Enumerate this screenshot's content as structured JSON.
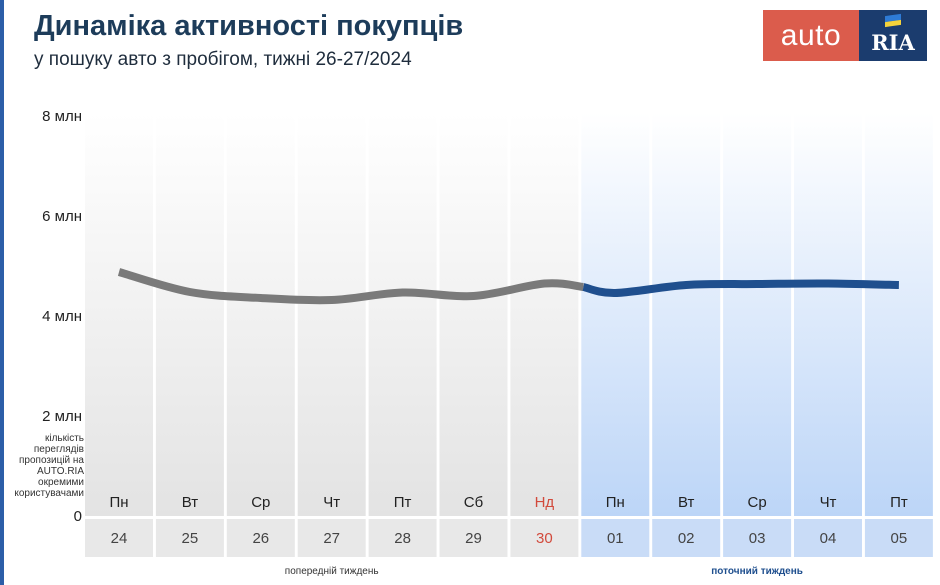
{
  "title": "Динаміка активності покупців",
  "subtitle": "у пошуку авто з пробігом, тижні 26-27/2024",
  "logo": {
    "part1": "auto",
    "part2": "RIA"
  },
  "metric_note": "кількість переглядів пропозицій на AUTO.RIA окремими користувачами",
  "colors": {
    "previous_week": "#7a7a7a",
    "current_week": "#1f4f8e",
    "weekend": "#d24a3c",
    "title": "#1d3c5a",
    "current_week_label": "#1f4f8e"
  },
  "chart_data": {
    "type": "line",
    "y_ticks": [
      "0",
      "2 млн",
      "4 млн",
      "6 млн",
      "8 млн"
    ],
    "ylim": [
      0,
      8000000
    ],
    "days": [
      "Пн",
      "Вт",
      "Ср",
      "Чт",
      "Пт",
      "Сб",
      "Нд",
      "Пн",
      "Вт",
      "Ср",
      "Чт",
      "Пт"
    ],
    "dates": [
      "24",
      "25",
      "26",
      "27",
      "28",
      "29",
      "30",
      "01",
      "02",
      "03",
      "04",
      "05"
    ],
    "week_labels": [
      "попередній тиждень",
      "поточний тиждень"
    ],
    "series": [
      {
        "week": 0,
        "x": [
          0,
          1,
          2,
          3,
          4,
          5,
          6,
          6.55
        ],
        "values": [
          4880000,
          4480000,
          4360000,
          4320000,
          4470000,
          4400000,
          4650000,
          4580000
        ]
      },
      {
        "week": 1,
        "x": [
          6.55,
          7,
          8,
          9,
          10,
          11
        ],
        "values": [
          4580000,
          4460000,
          4620000,
          4640000,
          4650000,
          4620000
        ]
      }
    ]
  }
}
